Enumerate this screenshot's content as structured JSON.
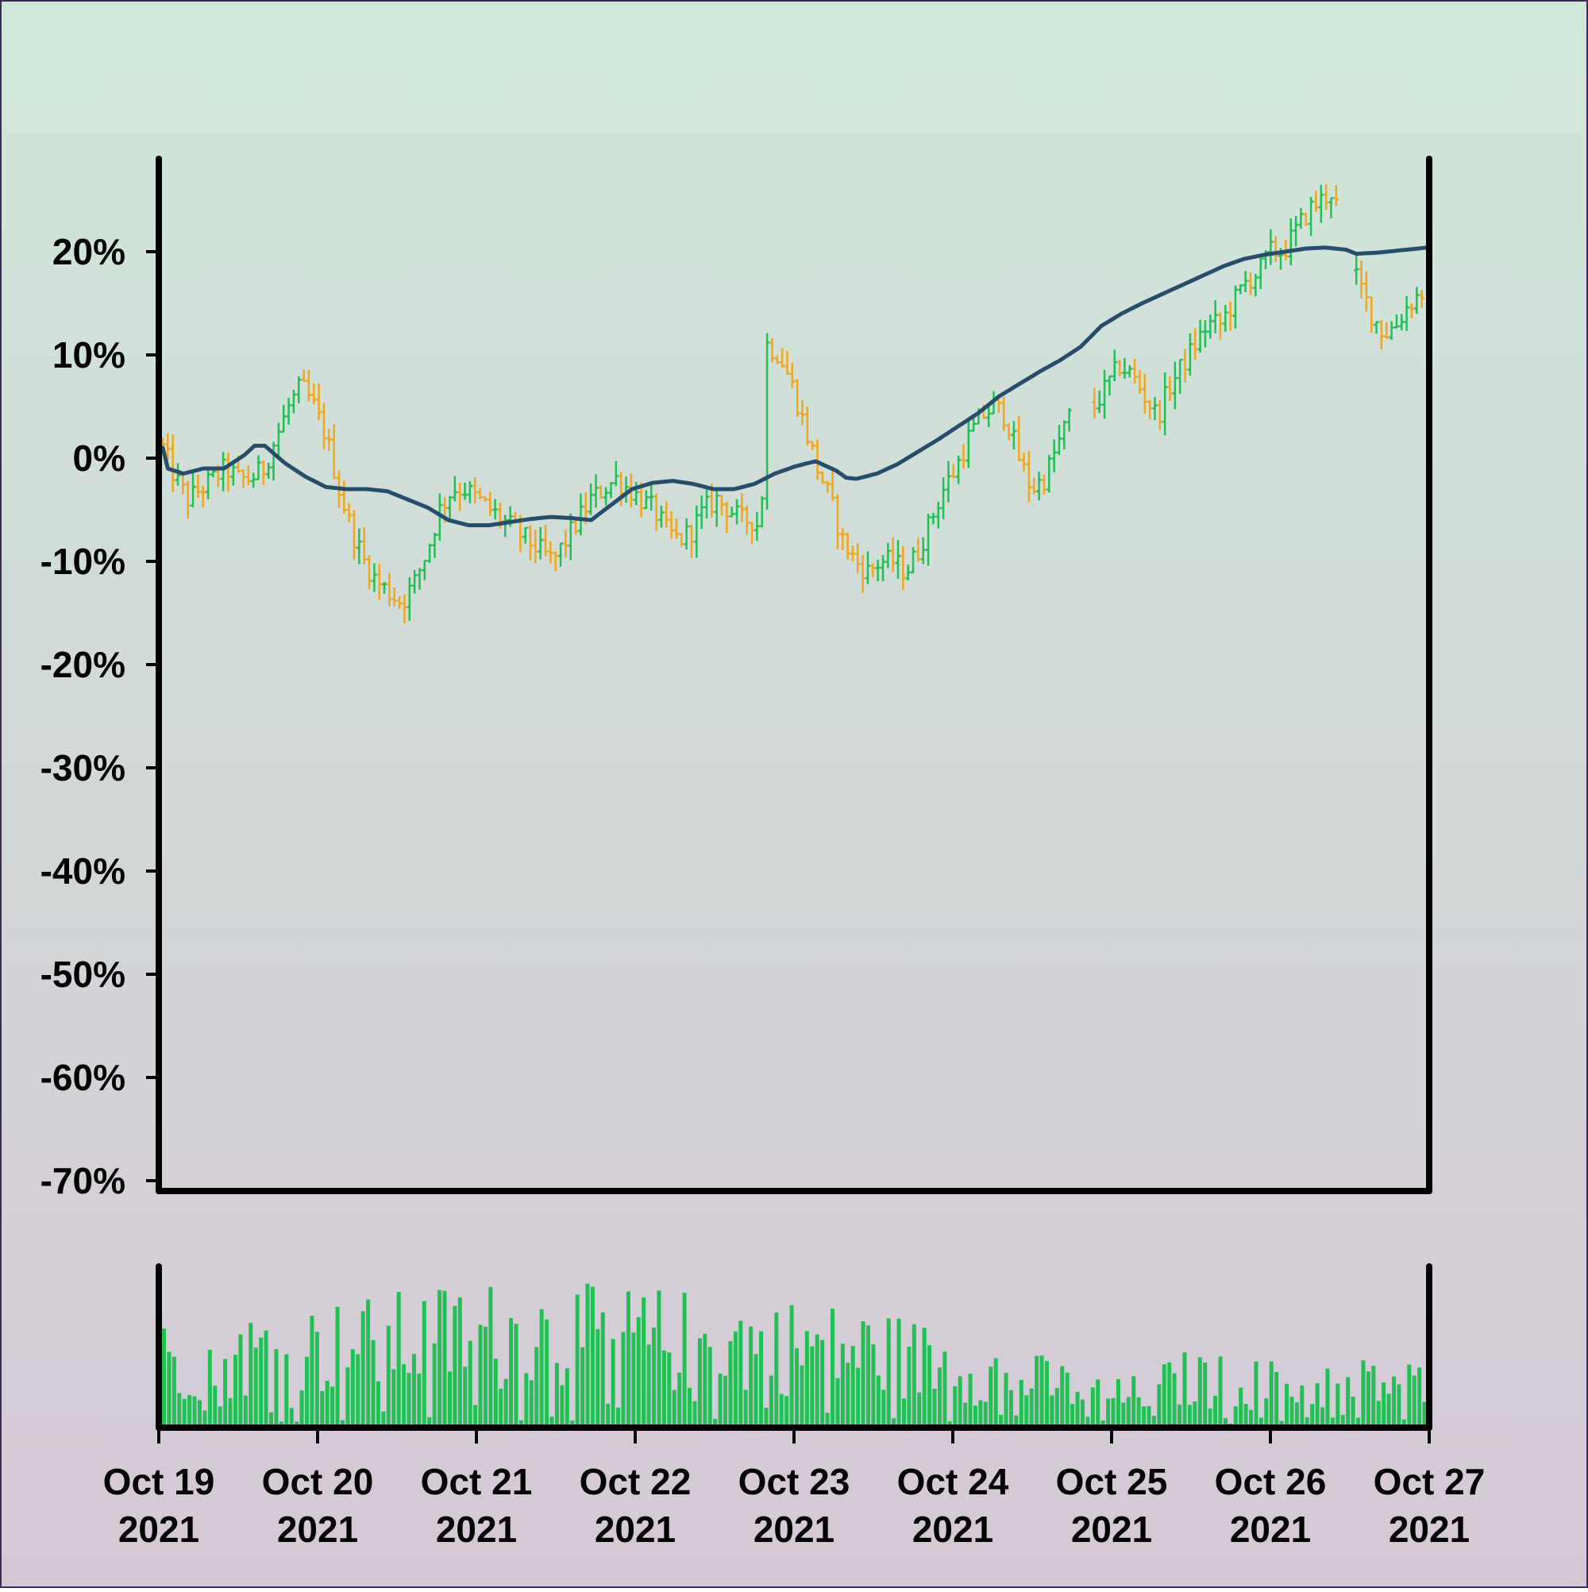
{
  "colors": {
    "background_top": "#cfe8da",
    "background_bottom": "#d5c8d5",
    "border": "#3b2a5a",
    "up": "#22bf55",
    "down": "#f0a61e",
    "moving_average": "#264d6b",
    "volume": "#22bf55",
    "axis": "#000000"
  },
  "chart_data": [
    {
      "type": "ohlc",
      "panel": "price",
      "yaxis_format": "percent",
      "ylim": [
        -71,
        29
      ],
      "yticks": [
        20,
        10,
        0,
        -10,
        -20,
        -30,
        -40,
        -50,
        -60,
        -70
      ],
      "ytick_labels": [
        "20%",
        "10%",
        "0%",
        "-10%",
        "-20%",
        "-30%",
        "-40%",
        "-50%",
        "-60%",
        "-70%"
      ],
      "x_start": "Oct 19 2021",
      "x_end": "Oct 27 2021",
      "bars_per_day": 24,
      "gap_at_hours": [
        146,
        188
      ],
      "close_anchors": [
        [
          0,
          1
        ],
        [
          2,
          -2
        ],
        [
          4,
          -4
        ],
        [
          6,
          -3
        ],
        [
          8,
          -2
        ],
        [
          10,
          -1
        ],
        [
          12,
          -2
        ],
        [
          14,
          -2
        ],
        [
          16,
          -1
        ],
        [
          18,
          2
        ],
        [
          20,
          5
        ],
        [
          22,
          7
        ],
        [
          24,
          5
        ],
        [
          26,
          2
        ],
        [
          28,
          -3
        ],
        [
          30,
          -7
        ],
        [
          32,
          -10
        ],
        [
          34,
          -12
        ],
        [
          36,
          -13
        ],
        [
          38,
          -14
        ],
        [
          40,
          -12
        ],
        [
          42,
          -9
        ],
        [
          44,
          -5
        ],
        [
          46,
          -3
        ],
        [
          48,
          -3
        ],
        [
          50,
          -4
        ],
        [
          52,
          -5
        ],
        [
          54,
          -6
        ],
        [
          56,
          -7
        ],
        [
          58,
          -8
        ],
        [
          60,
          -9
        ],
        [
          62,
          -10
        ],
        [
          64,
          -8
        ],
        [
          66,
          -6
        ],
        [
          68,
          -4
        ],
        [
          70,
          -3
        ],
        [
          72,
          -2
        ],
        [
          74,
          -3
        ],
        [
          76,
          -4
        ],
        [
          78,
          -5
        ],
        [
          80,
          -7
        ],
        [
          82,
          -8
        ],
        [
          84,
          -7
        ],
        [
          86,
          -5
        ],
        [
          88,
          -4
        ],
        [
          90,
          -5
        ],
        [
          92,
          -6
        ],
        [
          94,
          -6
        ],
        [
          95,
          -7
        ],
        [
          96,
          11
        ],
        [
          98,
          10
        ],
        [
          100,
          7
        ],
        [
          102,
          3
        ],
        [
          104,
          -1
        ],
        [
          106,
          -4
        ],
        [
          108,
          -8
        ],
        [
          110,
          -10
        ],
        [
          112,
          -11
        ],
        [
          114,
          -10
        ],
        [
          116,
          -10
        ],
        [
          118,
          -11
        ],
        [
          120,
          -9
        ],
        [
          122,
          -6
        ],
        [
          124,
          -3
        ],
        [
          126,
          -1
        ],
        [
          128,
          2
        ],
        [
          130,
          4
        ],
        [
          132,
          5
        ],
        [
          134,
          4
        ],
        [
          136,
          0
        ],
        [
          138,
          -3
        ],
        [
          140,
          -2
        ],
        [
          142,
          1
        ],
        [
          144,
          4
        ],
        [
          146,
          6
        ],
        [
          148,
          5
        ],
        [
          150,
          7
        ],
        [
          152,
          9
        ],
        [
          154,
          8
        ],
        [
          156,
          6
        ],
        [
          158,
          4
        ],
        [
          160,
          7
        ],
        [
          162,
          9
        ],
        [
          164,
          11
        ],
        [
          166,
          13
        ],
        [
          168,
          13
        ],
        [
          170,
          15
        ],
        [
          172,
          17
        ],
        [
          174,
          18
        ],
        [
          176,
          20
        ],
        [
          178,
          20
        ],
        [
          180,
          22
        ],
        [
          182,
          24
        ],
        [
          184,
          25
        ],
        [
          186,
          26
        ],
        [
          188,
          19
        ],
        [
          190,
          17
        ],
        [
          192,
          14
        ],
        [
          194,
          12
        ],
        [
          196,
          13
        ],
        [
          198,
          15
        ],
        [
          200,
          16
        ],
        [
          202,
          17
        ],
        [
          204,
          17
        ],
        [
          206,
          18
        ],
        [
          208,
          20
        ],
        [
          210,
          22
        ],
        [
          212,
          23
        ],
        [
          214,
          22
        ],
        [
          216,
          21
        ],
        [
          218,
          20
        ],
        [
          220,
          21
        ],
        [
          222,
          22
        ],
        [
          224,
          23
        ],
        [
          226,
          25
        ],
        [
          228,
          26
        ],
        [
          230,
          27
        ],
        [
          232,
          20
        ],
        [
          234,
          19
        ],
        [
          236,
          17
        ],
        [
          238,
          18
        ],
        [
          240,
          20
        ],
        [
          242,
          19
        ],
        [
          244,
          17
        ],
        [
          246,
          16
        ],
        [
          248,
          17
        ]
      ],
      "up_color": "#22bf55",
      "down_color": "#f0a61e"
    },
    {
      "type": "line",
      "panel": "price",
      "x_start": "Oct 19 2021",
      "points": [
        [
          0,
          1
        ],
        [
          1,
          -1
        ],
        [
          4,
          -1.5
        ],
        [
          8,
          -1
        ],
        [
          12,
          -1
        ],
        [
          16,
          0.3
        ],
        [
          18,
          1.2
        ],
        [
          20,
          1.2
        ],
        [
          24,
          -0.5
        ],
        [
          28,
          -1.8
        ],
        [
          32,
          -2.8
        ],
        [
          36,
          -3
        ],
        [
          40,
          -3
        ],
        [
          44,
          -3.2
        ],
        [
          48,
          -4
        ],
        [
          52,
          -4.8
        ],
        [
          56,
          -6
        ],
        [
          60,
          -6.5
        ],
        [
          64,
          -6.5
        ],
        [
          68,
          -6.2
        ],
        [
          72,
          -5.9
        ],
        [
          76,
          -5.7
        ],
        [
          80,
          -5.8
        ],
        [
          84,
          -6
        ],
        [
          88,
          -4.5
        ],
        [
          92,
          -3
        ],
        [
          96,
          -2.4
        ],
        [
          100,
          -2.2
        ],
        [
          104,
          -2.5
        ],
        [
          108,
          -3
        ],
        [
          112,
          -3
        ],
        [
          116,
          -2.5
        ],
        [
          120,
          -1.5
        ],
        [
          124,
          -0.8
        ],
        [
          128,
          -0.3
        ],
        [
          132,
          -1.2
        ],
        [
          134,
          -1.9
        ],
        [
          136,
          -2
        ],
        [
          140,
          -1.5
        ],
        [
          144,
          -0.6
        ],
        [
          148,
          0.6
        ],
        [
          152,
          1.8
        ],
        [
          156,
          3.1
        ],
        [
          160,
          4.4
        ],
        [
          164,
          6
        ],
        [
          168,
          7.2
        ],
        [
          172,
          8.4
        ],
        [
          176,
          9.5
        ],
        [
          180,
          10.8
        ],
        [
          184,
          12.8
        ],
        [
          188,
          14
        ],
        [
          192,
          15
        ],
        [
          196,
          15.9
        ],
        [
          200,
          16.8
        ],
        [
          204,
          17.7
        ],
        [
          208,
          18.6
        ],
        [
          212,
          19.3
        ],
        [
          216,
          19.7
        ],
        [
          220,
          20
        ],
        [
          224,
          20.3
        ],
        [
          228,
          20.4
        ],
        [
          232,
          20.2
        ],
        [
          234,
          19.8
        ],
        [
          238,
          19.9
        ],
        [
          242,
          20.1
        ],
        [
          246,
          20.3
        ],
        [
          248,
          20.4
        ]
      ],
      "color": "#264d6b"
    },
    {
      "type": "bar",
      "panel": "volume",
      "x_start": "Oct 19 2021",
      "x_end": "Oct 27 2021",
      "xtick_labels": [
        [
          "Oct 19",
          "2021"
        ],
        [
          "Oct 20",
          "2021"
        ],
        [
          "Oct 21",
          "2021"
        ],
        [
          "Oct 22",
          "2021"
        ],
        [
          "Oct 23",
          "2021"
        ],
        [
          "Oct 24",
          "2021"
        ],
        [
          "Oct 25",
          "2021"
        ],
        [
          "Oct 26",
          "2021"
        ],
        [
          "Oct 27",
          "2021"
        ]
      ],
      "relative_volume_profile": [
        [
          0,
          0.45
        ],
        [
          20,
          0.5
        ],
        [
          40,
          0.55
        ],
        [
          60,
          0.62
        ],
        [
          80,
          0.6
        ],
        [
          100,
          0.58
        ],
        [
          120,
          0.55
        ],
        [
          140,
          0.5
        ],
        [
          160,
          0.38
        ],
        [
          176,
          0.28
        ],
        [
          188,
          0.2
        ],
        [
          200,
          0.32
        ],
        [
          220,
          0.28
        ],
        [
          240,
          0.3
        ],
        [
          248,
          0.28
        ]
      ],
      "color": "#22bf55"
    }
  ]
}
